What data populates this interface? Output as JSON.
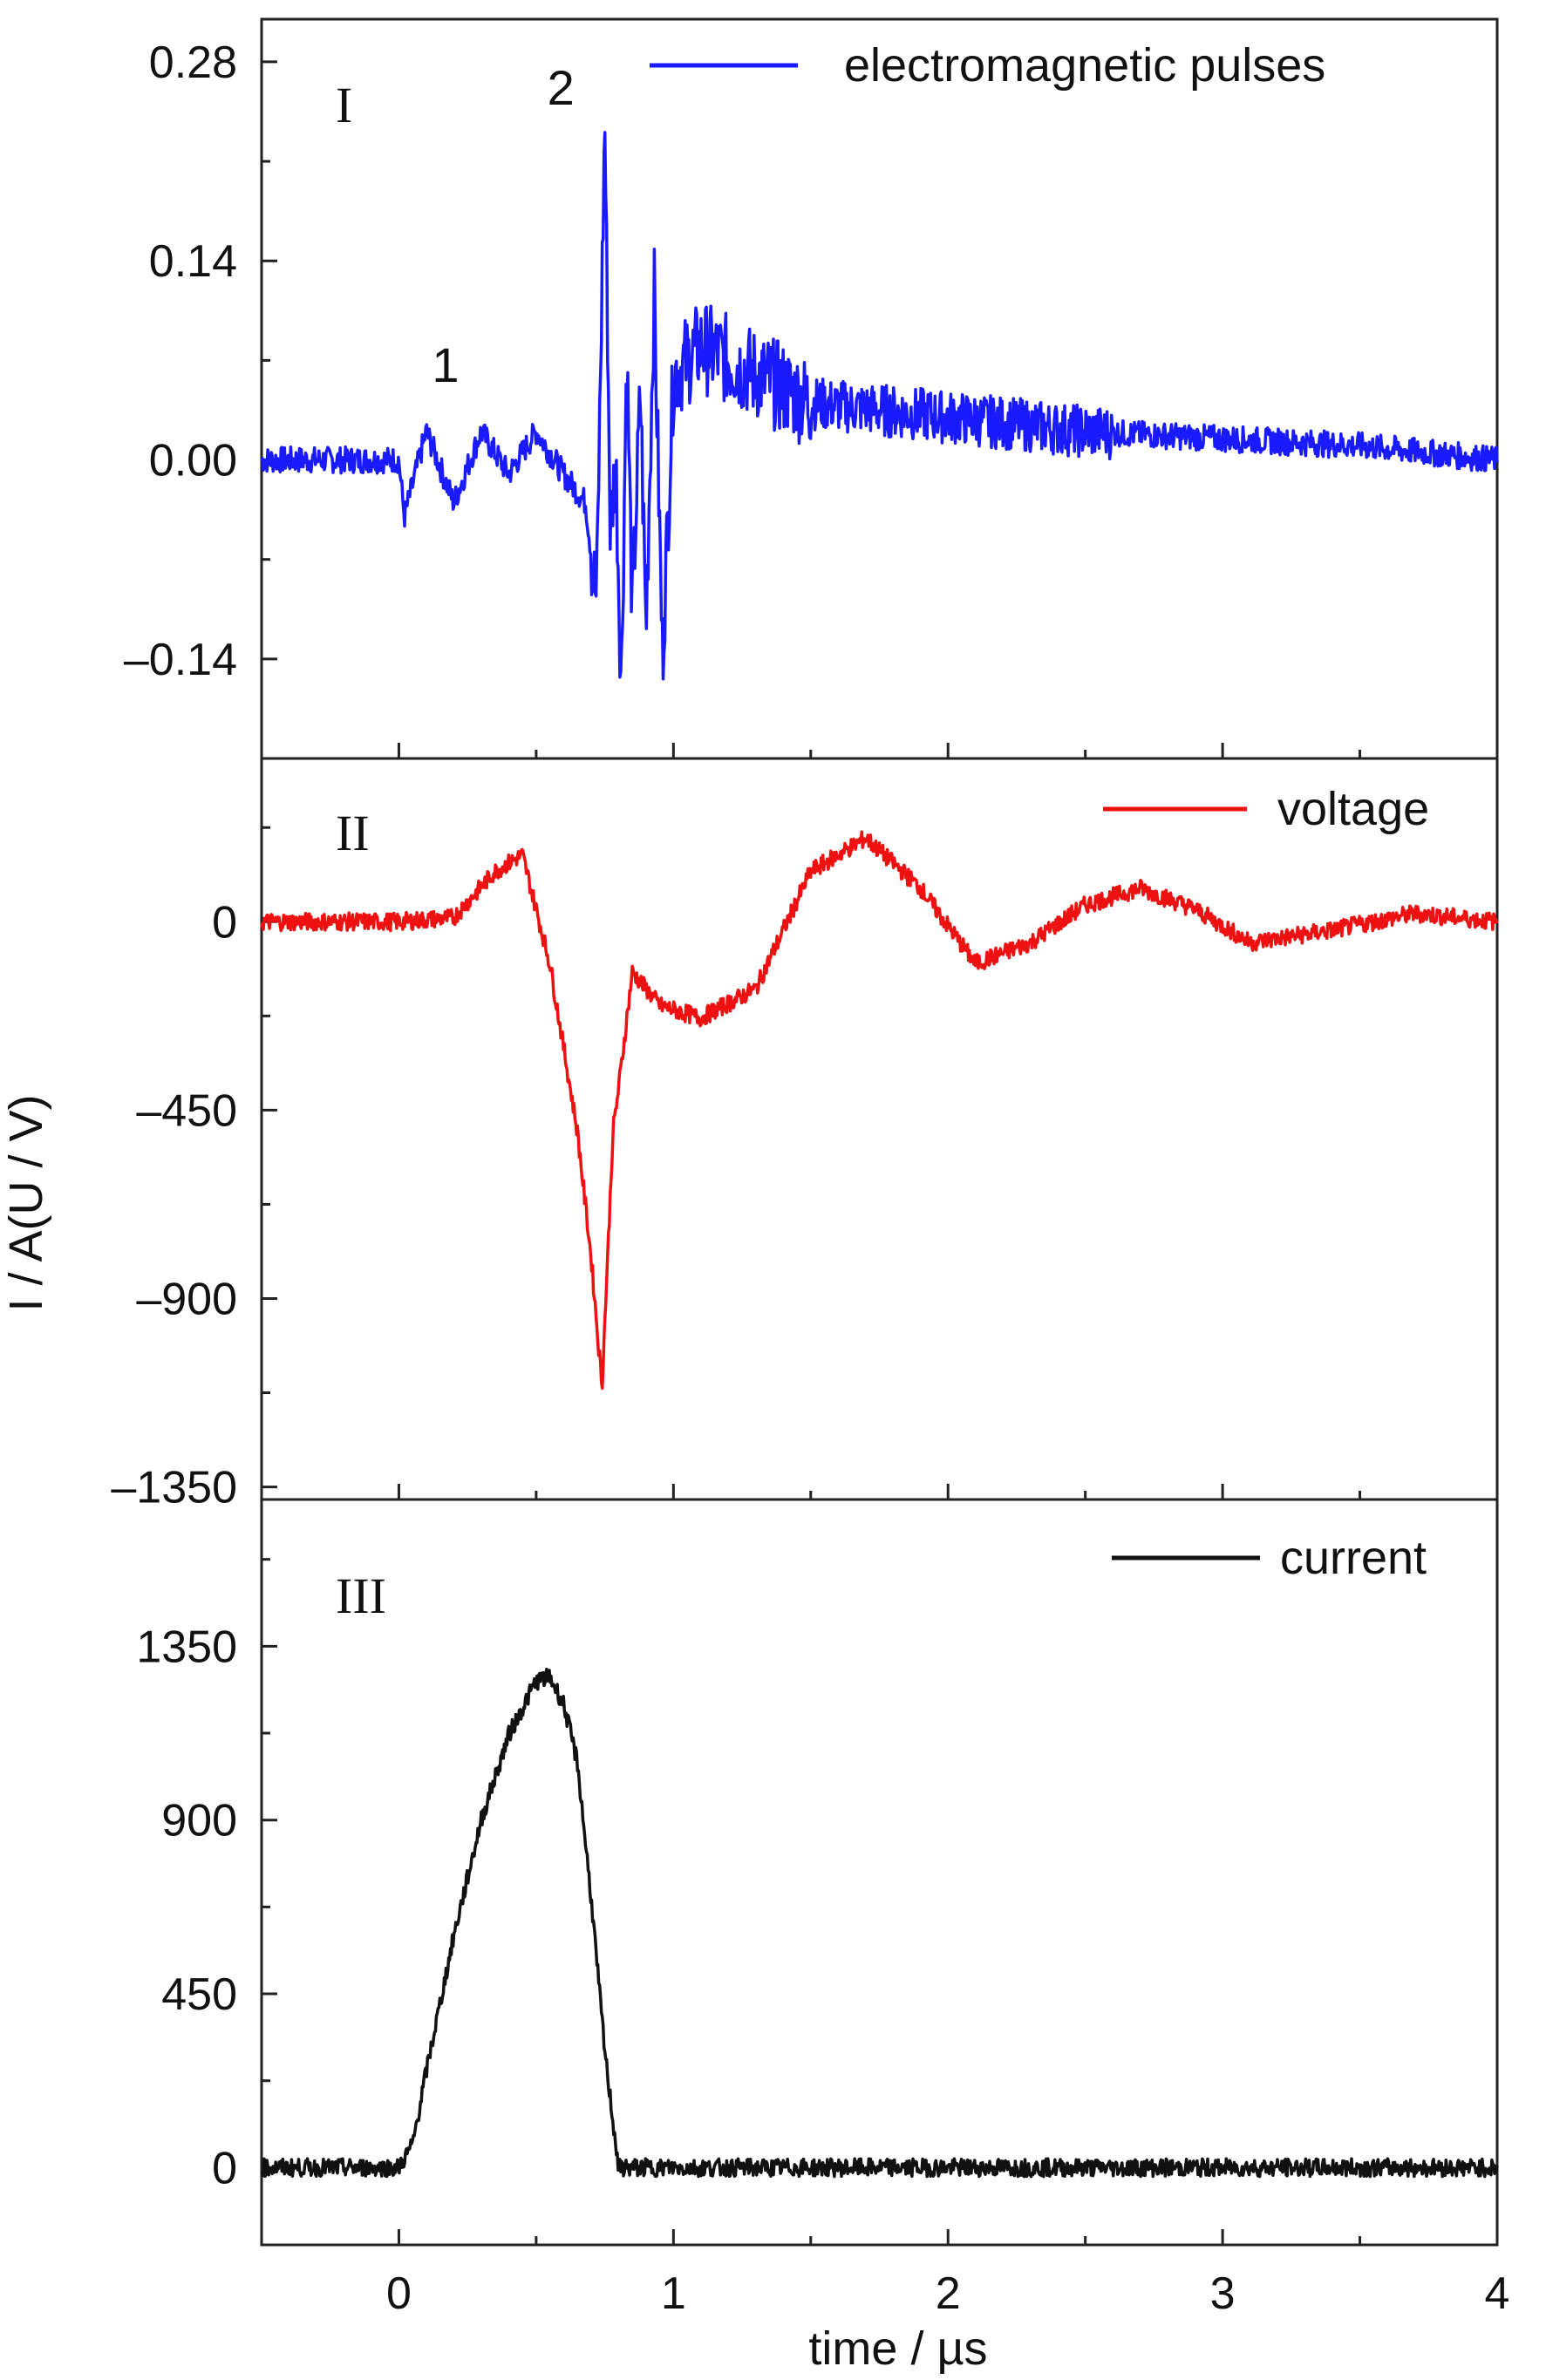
{
  "chart_data": {
    "type": "line",
    "xlabel": "time / µs",
    "ylabel": "I / A(U / V)",
    "xlim": [
      -0.5,
      4
    ],
    "x_ticks": [
      "0",
      "1",
      "2",
      "3",
      "4"
    ],
    "panels": [
      {
        "label": "I",
        "ylim": [
          -0.21,
          0.31
        ],
        "y_ticks": [
          "0.28",
          "0.14",
          "0.00",
          "–0.14"
        ],
        "color": "#1a1aff",
        "legend": "electromagnetic pulses",
        "annotations": [
          {
            "text": "1",
            "x": 0.17,
            "y": 0.055
          },
          {
            "text": "2",
            "x": 0.59,
            "y": 0.25
          }
        ],
        "series": [
          {
            "name": "electromagnetic pulses",
            "x": [
              -0.5,
              0.0,
              0.02,
              0.1,
              0.2,
              0.3,
              0.4,
              0.5,
              0.6,
              0.68,
              0.72,
              0.75,
              0.77,
              0.79,
              0.81,
              0.83,
              0.85,
              0.88,
              0.9,
              0.93,
              0.96,
              1.0,
              1.1,
              1.2,
              1.3,
              1.5,
              2.0,
              2.5,
              3.0,
              3.5,
              4.0
            ],
            "y": [
              0.0,
              0.0,
              -0.04,
              0.02,
              -0.03,
              0.02,
              -0.01,
              0.02,
              -0.01,
              -0.03,
              -0.1,
              0.24,
              -0.05,
              0.0,
              -0.16,
              0.08,
              -0.11,
              0.05,
              -0.12,
              0.12,
              -0.14,
              0.06,
              0.08,
              0.07,
              0.06,
              0.04,
              0.03,
              0.02,
              0.015,
              0.01,
              0.0
            ]
          }
        ]
      },
      {
        "label": "II",
        "ylim": [
          -1380,
          390
        ],
        "y_ticks": [
          "0",
          "–450",
          "–900",
          "–1350"
        ],
        "color": "#ee1111",
        "legend": "voltage",
        "series": [
          {
            "name": "voltage",
            "x": [
              -0.5,
              0.0,
              0.2,
              0.35,
              0.45,
              0.55,
              0.65,
              0.7,
              0.74,
              0.78,
              0.8,
              0.85,
              0.95,
              1.1,
              1.3,
              1.5,
              1.7,
              1.9,
              2.1,
              2.3,
              2.5,
              2.7,
              2.9,
              3.1,
              3.4,
              3.7,
              4.0
            ],
            "y": [
              0.0,
              0.0,
              10.0,
              120.0,
              160.0,
              -100.0,
              -500.0,
              -800.0,
              -1110.0,
              -500.0,
              -400.0,
              -120.0,
              -200.0,
              -230.0,
              -160.0,
              120.0,
              200.0,
              80.0,
              -100.0,
              -50.0,
              40.0,
              80.0,
              30.0,
              -50.0,
              -20.0,
              20.0,
              0.0
            ]
          }
        ]
      },
      {
        "label": "III",
        "ylim": [
          -200,
          1730
        ],
        "y_ticks": [
          "1350",
          "900",
          "450",
          "0"
        ],
        "color": "#111111",
        "legend": "current",
        "series": [
          {
            "name": "current",
            "x": [
              -0.5,
              0.0,
              0.05,
              0.1,
              0.2,
              0.3,
              0.4,
              0.5,
              0.55,
              0.6,
              0.65,
              0.7,
              0.75,
              0.8,
              1.0,
              1.5,
              2.0,
              2.5,
              3.0,
              3.5,
              4.0
            ],
            "y": [
              0.0,
              0.0,
              60.0,
              250.0,
              600.0,
              900.0,
              1120.0,
              1260.0,
              1270.0,
              1200.0,
              1050.0,
              700.0,
              300.0,
              0.0,
              0.0,
              0.0,
              0.0,
              0.0,
              0.0,
              0.0,
              0.0
            ]
          }
        ]
      }
    ]
  }
}
